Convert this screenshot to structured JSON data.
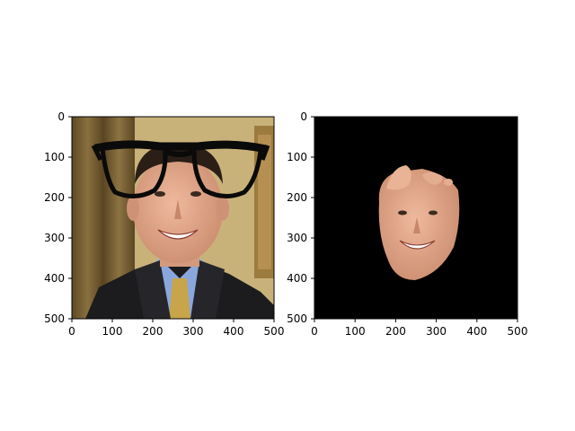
{
  "panels": [
    {
      "id": "left",
      "content": "portrait of smiling man in suit with black eyeglasses overlay on wood-panel background",
      "xlim": [
        0,
        500
      ],
      "ylim": [
        500,
        0
      ],
      "xticks": [
        0,
        100,
        200,
        300,
        400,
        500
      ],
      "yticks": [
        0,
        100,
        200,
        300,
        400,
        500
      ],
      "xtick_labels": [
        "0",
        "100",
        "200",
        "300",
        "400",
        "500"
      ],
      "ytick_labels": [
        "0",
        "100",
        "200",
        "300",
        "400",
        "500"
      ]
    },
    {
      "id": "right",
      "content": "segmented face region on black background",
      "xlim": [
        0,
        500
      ],
      "ylim": [
        500,
        0
      ],
      "xticks": [
        0,
        100,
        200,
        300,
        400,
        500
      ],
      "yticks": [
        0,
        100,
        200,
        300,
        400,
        500
      ],
      "xtick_labels": [
        "0",
        "100",
        "200",
        "300",
        "400",
        "500"
      ],
      "ytick_labels": [
        "0",
        "100",
        "200",
        "300",
        "400",
        "500"
      ]
    }
  ],
  "colors": {
    "background_wall": "#c9b27a",
    "curtain": "#6f5a30",
    "suit": "#1c1c1e",
    "shirt": "#8aa7dd",
    "tie": "#c8a44a",
    "skin": "#e0a58a",
    "hair": "#2a1e17",
    "mask_bg": "#000000",
    "glasses": "#0a0a0a"
  }
}
